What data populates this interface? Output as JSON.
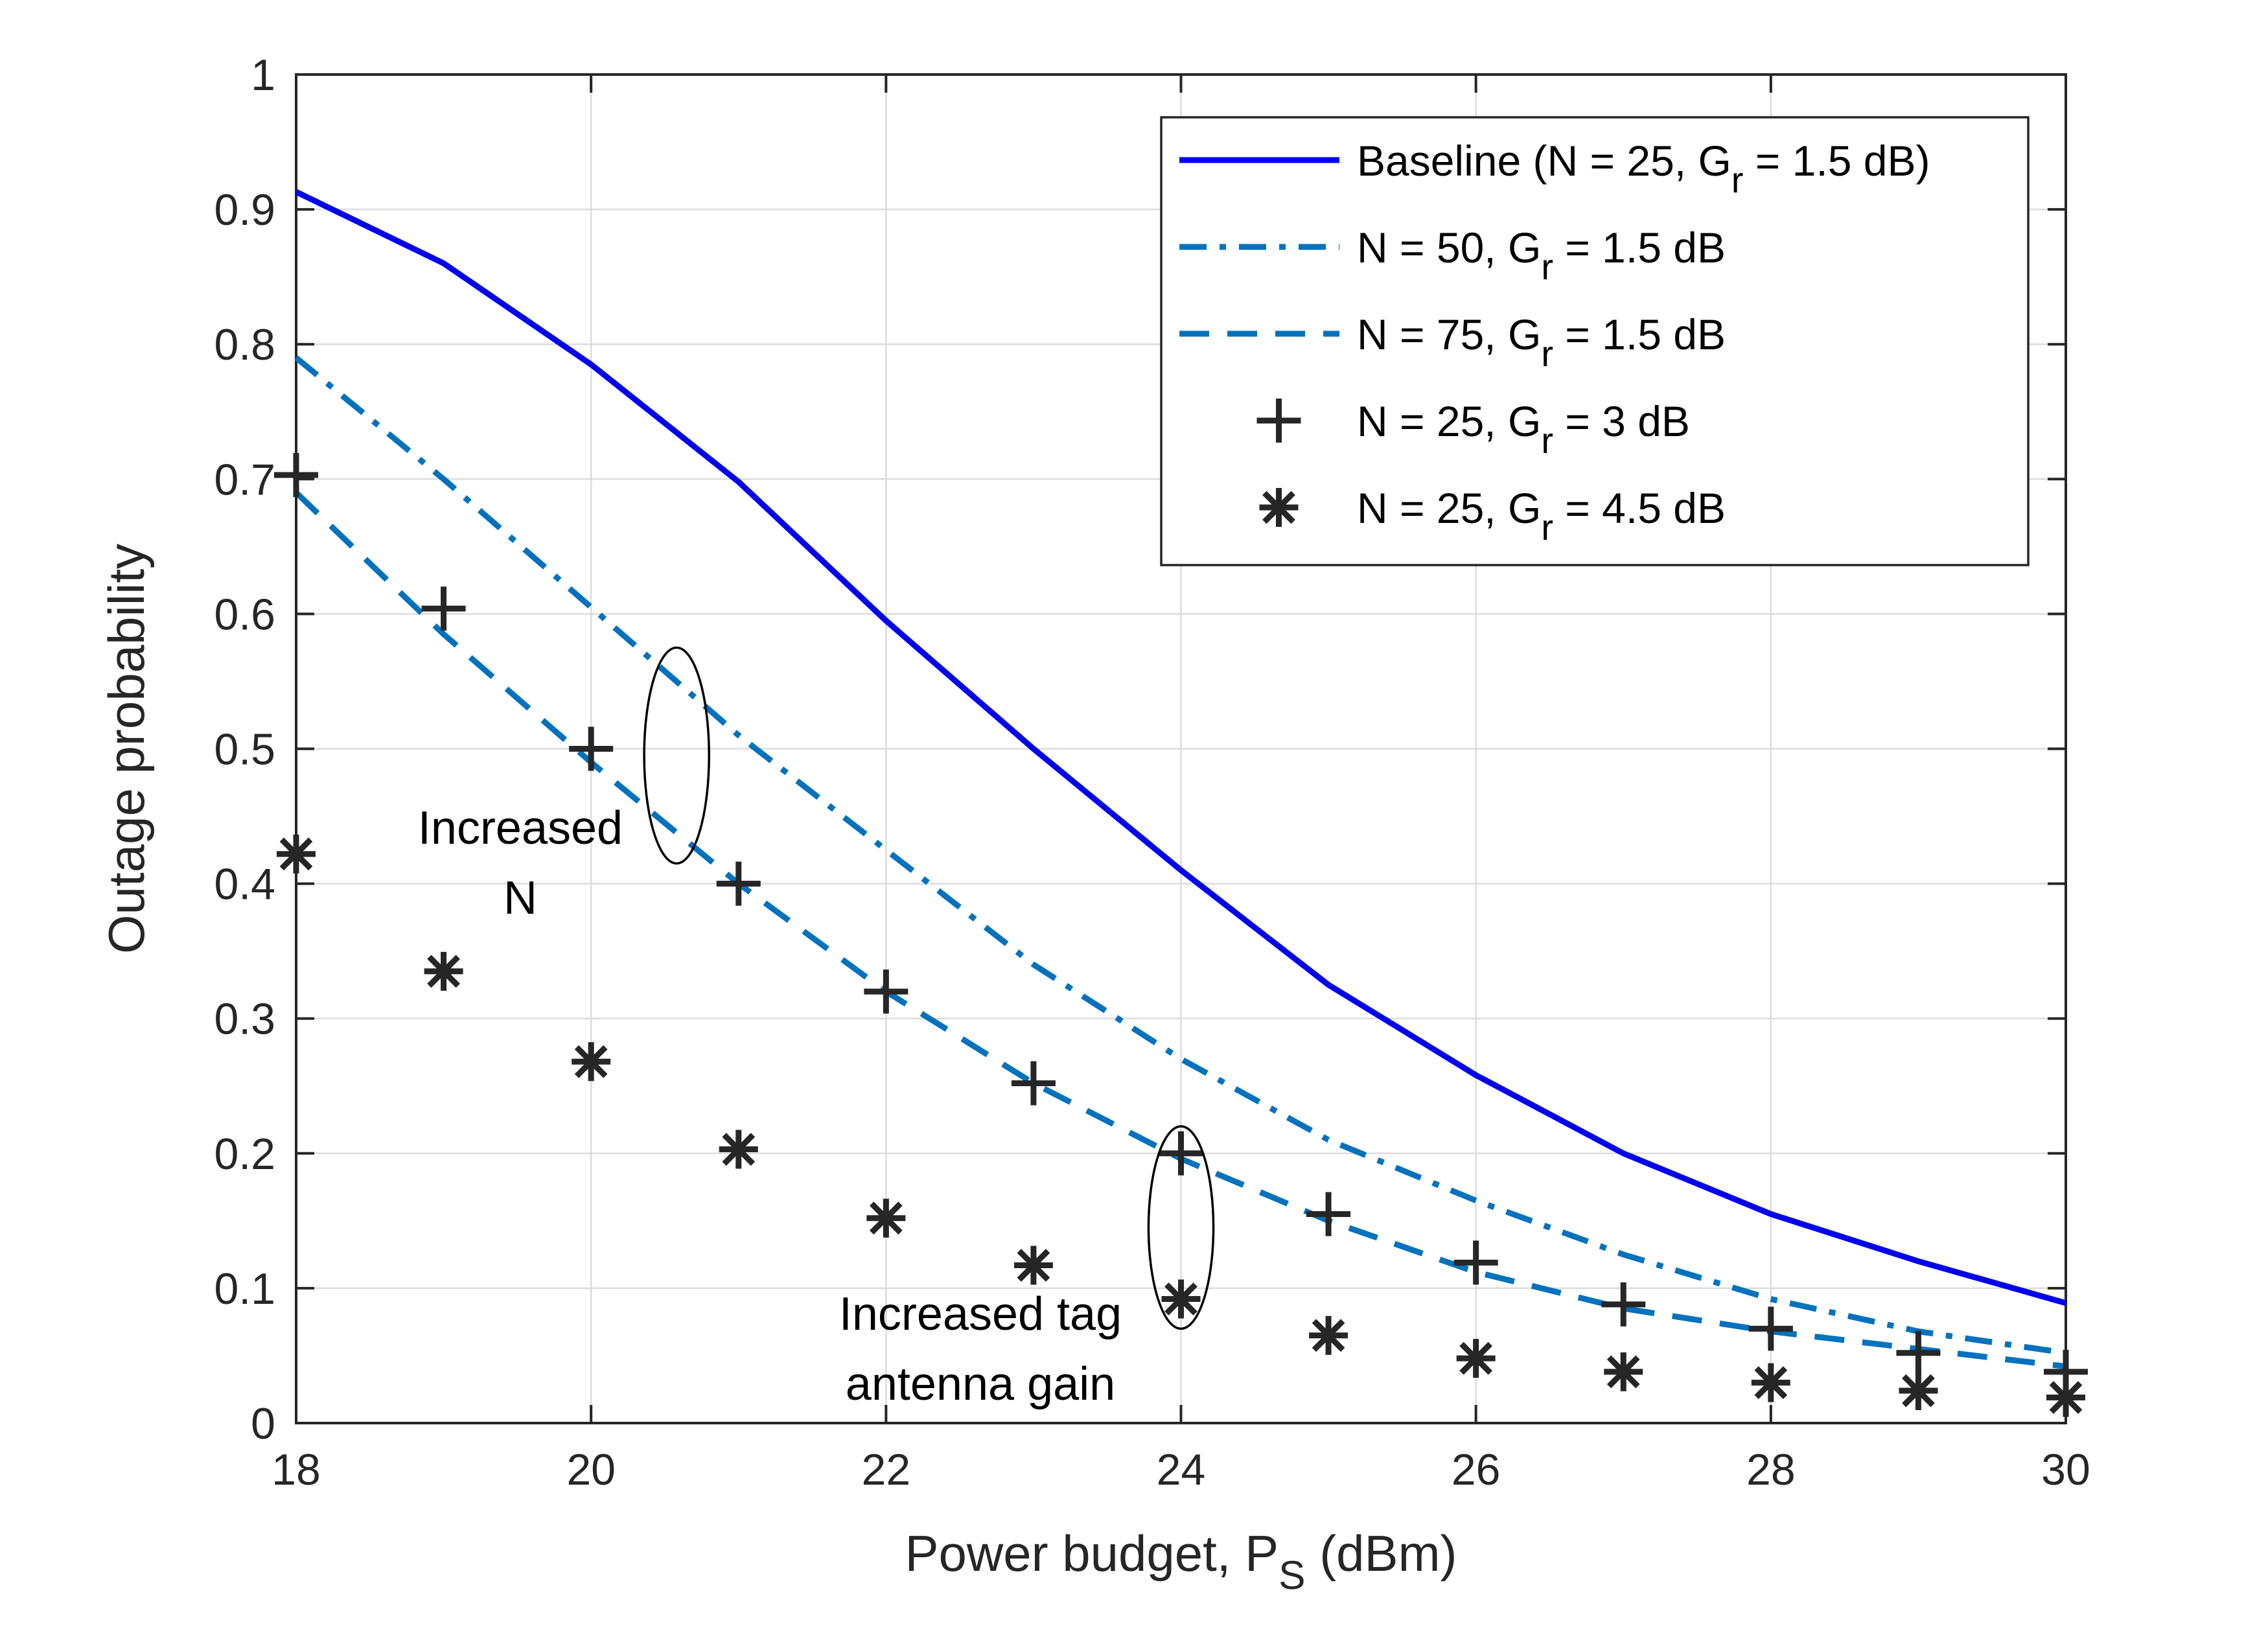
{
  "chart_data": {
    "type": "line",
    "title": "",
    "xlabel": "Power budget, P",
    "xlabel_sub": "S",
    "xlabel_suffix": " (dBm)",
    "ylabel": "Outage probability",
    "xlim": [
      18,
      30
    ],
    "ylim": [
      0,
      1
    ],
    "xticks": [
      18,
      20,
      22,
      24,
      26,
      28,
      30
    ],
    "yticks": [
      0,
      0.1,
      0.2,
      0.3,
      0.4,
      0.5,
      0.6,
      0.7,
      0.8,
      0.9,
      1
    ],
    "ytick_labels": [
      "0",
      "0.1",
      "0.2",
      "0.3",
      "0.4",
      "0.5",
      "0.6",
      "0.7",
      "0.8",
      "0.9",
      "1"
    ],
    "grid": true,
    "legend_position": "top-right",
    "x": [
      18,
      19,
      20,
      21,
      22,
      23,
      24,
      25,
      26,
      27,
      28,
      29,
      30
    ],
    "series": [
      {
        "name": "Baseline (N = 25, G_r = 1.5 dB)",
        "legend_main": "Baseline (N = 25, G",
        "legend_sub": "r",
        "legend_tail": " = 1.5 dB)",
        "style": "solid",
        "color": "#0000ee",
        "values": [
          0.913,
          0.86,
          0.785,
          0.698,
          0.595,
          0.5,
          0.41,
          0.325,
          0.258,
          0.2,
          0.155,
          0.12,
          0.089
        ]
      },
      {
        "name": "N = 50, G_r = 1.5 dB",
        "legend_main": "N = 50, G",
        "legend_sub": "r",
        "legend_tail": " = 1.5 dB",
        "style": "dashdot",
        "color": "#0072bd",
        "values": [
          0.79,
          0.7,
          0.605,
          0.51,
          0.425,
          0.34,
          0.27,
          0.21,
          0.165,
          0.125,
          0.092,
          0.068,
          0.052
        ]
      },
      {
        "name": "N = 75, G_r = 1.5 dB",
        "legend_main": "N = 75, G",
        "legend_sub": "r",
        "legend_tail": " = 1.5 dB",
        "style": "dashed",
        "color": "#0072bd",
        "values": [
          0.69,
          0.585,
          0.49,
          0.4,
          0.32,
          0.252,
          0.196,
          0.15,
          0.112,
          0.085,
          0.068,
          0.055,
          0.042
        ]
      },
      {
        "name": "N = 25, G_r = 3 dB",
        "legend_main": "N = 25, G",
        "legend_sub": "r",
        "legend_tail": " = 3 dB",
        "style": "marker-plus",
        "color": "#262626",
        "values": [
          0.703,
          0.604,
          0.5,
          0.4,
          0.32,
          0.252,
          0.2,
          0.155,
          0.119,
          0.088,
          0.07,
          0.052,
          0.038
        ]
      },
      {
        "name": "N = 25, G_r = 4.5 dB",
        "legend_main": "N = 25, G",
        "legend_sub": "r",
        "legend_tail": " = 4.5 dB",
        "style": "marker-asterisk",
        "color": "#262626",
        "values": [
          0.422,
          0.335,
          0.268,
          0.203,
          0.152,
          0.117,
          0.092,
          0.065,
          0.048,
          0.038,
          0.03,
          0.024,
          0.019
        ]
      }
    ],
    "annotations": [
      {
        "lines": [
          "Increased",
          "N"
        ],
        "ellipse_center": [
          20.58,
          0.495
        ],
        "ellipse_radii": [
          0.22,
          0.08
        ]
      },
      {
        "lines": [
          "Increased tag",
          "antenna gain"
        ],
        "ellipse_center": [
          24.0,
          0.145
        ],
        "ellipse_radii": [
          0.22,
          0.075
        ]
      }
    ]
  }
}
